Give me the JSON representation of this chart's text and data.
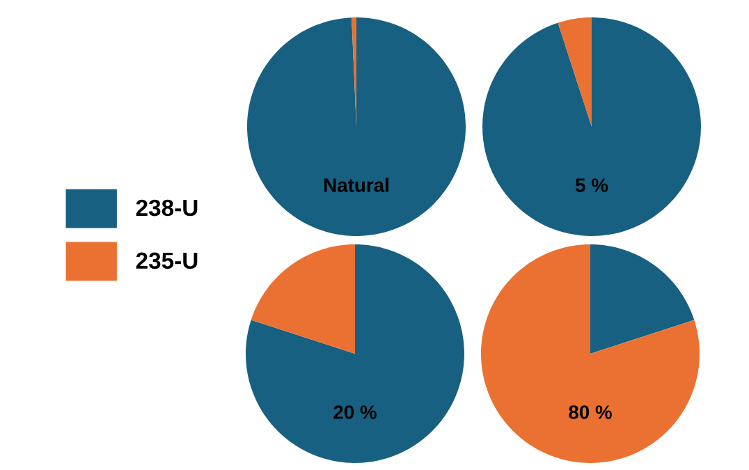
{
  "chart_data": [
    {
      "type": "pie",
      "title": "Natural",
      "categories": [
        "238-U",
        "235-U"
      ],
      "values": [
        99.3,
        0.7
      ],
      "colors": [
        "#176082",
        "#ea7132"
      ],
      "legend": "left"
    },
    {
      "type": "pie",
      "title": "5 %",
      "categories": [
        null,
        null
      ],
      "values": [
        95,
        5
      ],
      "colors": [
        "#176082",
        "#ea7132"
      ]
    },
    {
      "type": "pie",
      "title": "20 %",
      "categories": [
        null,
        null
      ],
      "values": [
        80,
        20
      ],
      "colors": [
        "#176082",
        "#ea7132"
      ]
    },
    {
      "type": "pie",
      "title": "80 %",
      "categories": [
        null,
        null
      ],
      "values": [
        20,
        80
      ],
      "colors": [
        "#176082",
        "#ea7132"
      ]
    }
  ]
}
